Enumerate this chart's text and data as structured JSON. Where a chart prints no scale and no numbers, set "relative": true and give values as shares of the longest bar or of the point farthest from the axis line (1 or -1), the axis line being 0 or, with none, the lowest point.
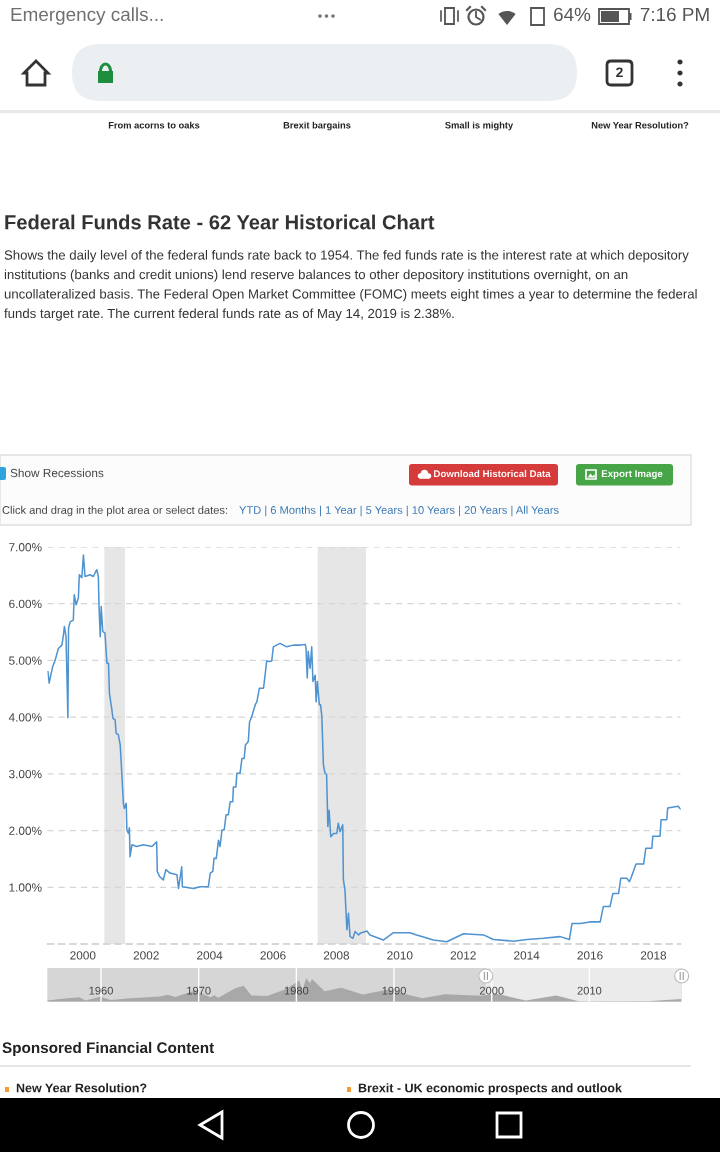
{
  "chart_data": [
    {
      "type": "line",
      "title": "Federal Funds Rate - 62 Year Historical Chart",
      "subtitle": "Shows the daily level of the federal funds rate back to 1954. The fed funds rate is the interest rate at which depository institutions (banks and credit unions) lend reserve balances to other depository institutions overnight, on an uncollateralized basis. The Federal Open Market Committee (FOMC) meets eight times a year to determine the federal funds target rate. The current federal funds rate as of May 14, 2019 is 2.38%.",
      "annotations": [
        "Emergency calls...",
        "64%",
        "7:16 PM",
        "2",
        "From acorns to oaks",
        "Brexit bargains",
        "Small is mighty",
        "New Year Resolution?",
        "Show Recessions",
        "Download Historical Data",
        "Export Image",
        "Click and drag in the plot area or select dates:",
        "YTD | 6 Months | 1 Year | 5 Years | 10 Years | 20 Years | All Years",
        "Sponsored Financial Content",
        "New Year Resolution?",
        "Brexit - UK economic prospects and outlook"
      ],
      "x": [
        1998.9,
        1998.94,
        1998.99,
        1999.05,
        1999.13,
        1999.23,
        1999.34,
        1999.39,
        1999.42,
        1999.47,
        1999.53,
        1999.55,
        1999.6,
        1999.7,
        1999.73,
        1999.79,
        1999.86,
        1999.89,
        1999.97,
        2000.02,
        2000.07,
        2000.23,
        2000.33,
        2000.44,
        2000.49,
        2000.51,
        2000.55,
        2000.58,
        2000.63,
        2000.7,
        2000.76,
        2000.81,
        2000.84,
        2000.91,
        2000.95,
        2001.02,
        2001.05,
        2001.12,
        2001.18,
        2001.23,
        2001.28,
        2001.31,
        2001.37,
        2001.39,
        2001.44,
        2001.47,
        2001.49,
        2001.55,
        2001.7,
        2001.91,
        2002.18,
        2002.33,
        2002.35,
        2002.42,
        2002.54,
        2002.62,
        2002.75,
        2002.97,
        2003.02,
        2003.12,
        2003.14,
        2003.49,
        2003.7,
        2003.96,
        2004.02,
        2004.1,
        2004.14,
        2004.21,
        2004.28,
        2004.33,
        2004.39,
        2004.46,
        2004.52,
        2004.59,
        2004.65,
        2004.73,
        2004.75,
        2004.83,
        2004.86,
        2004.96,
        2005.02,
        2005.09,
        2005.13,
        2005.22,
        2005.26,
        2005.33,
        2005.44,
        2005.49,
        2005.57,
        2005.7,
        2005.75,
        2005.8,
        2005.89,
        2005.96,
        2006.01,
        2006.22,
        2006.43,
        2006.64,
        2006.86,
        2007.02,
        2007.04,
        2007.08,
        2007.11,
        2007.17,
        2007.22,
        2007.26,
        2007.33,
        2007.36,
        2007.4,
        2007.46,
        2007.5,
        2007.54,
        2007.59,
        2007.64,
        2007.69,
        2007.73,
        2007.77,
        2007.82,
        2007.91,
        2008.01,
        2008.06,
        2008.11,
        2008.2,
        2008.22,
        2008.27,
        2008.33,
        2008.38,
        2008.43,
        2008.52,
        2008.59,
        2008.7,
        2008.75,
        2008.96,
        2009.06,
        2009.48,
        2009.8,
        2010.32,
        2010.53,
        2011.06,
        2011.48,
        2012.01,
        2012.64,
        2012.95,
        2013.58,
        2014.01,
        2014.53,
        2015.06,
        2015.35,
        2015.43,
        2015.69,
        2016.0,
        2016.32,
        2016.42,
        2016.63,
        2016.72,
        2016.9,
        2016.97,
        2017.16,
        2017.24,
        2017.29,
        2017.45,
        2017.69,
        2017.76,
        2017.95,
        2017.98,
        2018.21,
        2018.24,
        2018.42,
        2018.45,
        2018.78,
        2018.85
      ],
      "values": [
        4.8,
        4.6,
        4.74,
        4.89,
        5.01,
        5.21,
        5.27,
        5.45,
        5.6,
        5.42,
        3.99,
        5.57,
        5.68,
        5.71,
        6.16,
        5.98,
        6.1,
        6.51,
        6.46,
        6.86,
        6.48,
        6.51,
        6.48,
        6.6,
        6.48,
        5.98,
        5.42,
        5.95,
        5.51,
        5.48,
        4.95,
        4.95,
        4.42,
        4.16,
        3.98,
        3.95,
        3.72,
        3.69,
        3.51,
        3.01,
        2.48,
        2.39,
        2.48,
        2.01,
        1.95,
        2.05,
        1.54,
        1.75,
        1.72,
        1.75,
        1.72,
        1.8,
        1.28,
        1.19,
        1.13,
        1.31,
        1.25,
        1.22,
        0.98,
        1.36,
        1.01,
        0.98,
        1.01,
        1.01,
        1.25,
        1.28,
        1.51,
        1.51,
        1.83,
        1.72,
        2.01,
        2.01,
        2.28,
        2.28,
        2.51,
        2.51,
        2.77,
        2.77,
        3.01,
        3.01,
        3.27,
        3.27,
        3.51,
        3.57,
        3.92,
        4.01,
        4.22,
        4.27,
        4.51,
        4.51,
        4.74,
        4.99,
        4.98,
        4.99,
        5.24,
        5.3,
        5.24,
        5.27,
        5.27,
        5.28,
        5.22,
        4.69,
        5.16,
        4.86,
        5.24,
        4.63,
        4.74,
        4.27,
        4.63,
        4.22,
        4.22,
        4.01,
        3.16,
        3.01,
        2.99,
        2.07,
        2.36,
        1.89,
        1.95,
        1.95,
        2.13,
        1.98,
        2.1,
        1.13,
        0.95,
        0.25,
        0.54,
        0.13,
        0.1,
        0.22,
        0.16,
        0.19,
        0.23,
        0.16,
        0.07,
        0.2,
        0.2,
        0.16,
        0.07,
        0.04,
        0.18,
        0.16,
        0.08,
        0.05,
        0.08,
        0.1,
        0.13,
        0.08,
        0.36,
        0.36,
        0.39,
        0.39,
        0.66,
        0.66,
        0.89,
        0.89,
        1.16,
        1.16,
        1.1,
        1.16,
        1.41,
        1.41,
        1.69,
        1.69,
        1.9,
        1.9,
        2.19,
        2.19,
        2.4,
        2.43,
        2.38
      ],
      "color": "#4f93d0",
      "xlim": [
        1998.88,
        2018.86
      ],
      "ylim": [
        0,
        7
      ],
      "xticks": [
        2000,
        2002,
        2004,
        2006,
        2008,
        2010,
        2012,
        2014,
        2016,
        2018
      ],
      "yticks": [
        {
          "value": 0,
          "label": null
        },
        {
          "value": 1,
          "label": "1.00%"
        },
        {
          "value": 2,
          "label": "2.00%"
        },
        {
          "value": 3,
          "label": "3.00%"
        },
        {
          "value": 4,
          "label": "4.00%"
        },
        {
          "value": 5,
          "label": "5.00%"
        },
        {
          "value": 6,
          "label": "6.00%"
        },
        {
          "value": 7,
          "label": "7.00%"
        }
      ],
      "grid": "y",
      "bands": [
        {
          "axis": "x",
          "from": 2000.68,
          "to": 2001.33,
          "color": "#e6e6e6"
        },
        {
          "axis": "x",
          "from": 2007.41,
          "to": 2008.93,
          "color": "#e6e6e6"
        }
      ]
    },
    {
      "type": "area",
      "relative": true,
      "x": [
        1954.5,
        1956.0,
        1957.8,
        1958.4,
        1959.9,
        1961.0,
        1963.0,
        1966.0,
        1966.8,
        1967.6,
        1969.6,
        1971.2,
        1971.6,
        1972.0,
        1973.7,
        1974.6,
        1975.4,
        1977.0,
        1978.9,
        1980.3,
        1980.6,
        1981.0,
        1981.4,
        1981.6,
        1982.9,
        1984.6,
        1986.8,
        1989.3,
        1992.9,
        1995.2,
        1998.9,
        2000.5,
        2003.5,
        2006.6,
        2009.0,
        2015.9,
        2019.4
      ],
      "values": [
        0.05,
        0.13,
        0.19,
        0.05,
        0.21,
        0.07,
        0.15,
        0.22,
        0.3,
        0.2,
        0.48,
        0.19,
        0.28,
        0.17,
        0.56,
        0.68,
        0.27,
        0.24,
        0.53,
        0.91,
        0.47,
        1.0,
        0.8,
        0.97,
        0.45,
        0.6,
        0.31,
        0.51,
        0.15,
        0.32,
        0.25,
        0.34,
        0.05,
        0.27,
        0.01,
        0.02,
        0.12
      ],
      "color": "#a8a8a8",
      "xlim": [
        1954.5,
        2019.45
      ],
      "xticks": [
        1960,
        1970,
        1980,
        1990,
        2000,
        2010
      ],
      "grid": "x",
      "bands": [
        {
          "axis": "x",
          "from": 1999.4,
          "to": 2019.45,
          "color": "#ebebeb"
        }
      ]
    }
  ]
}
